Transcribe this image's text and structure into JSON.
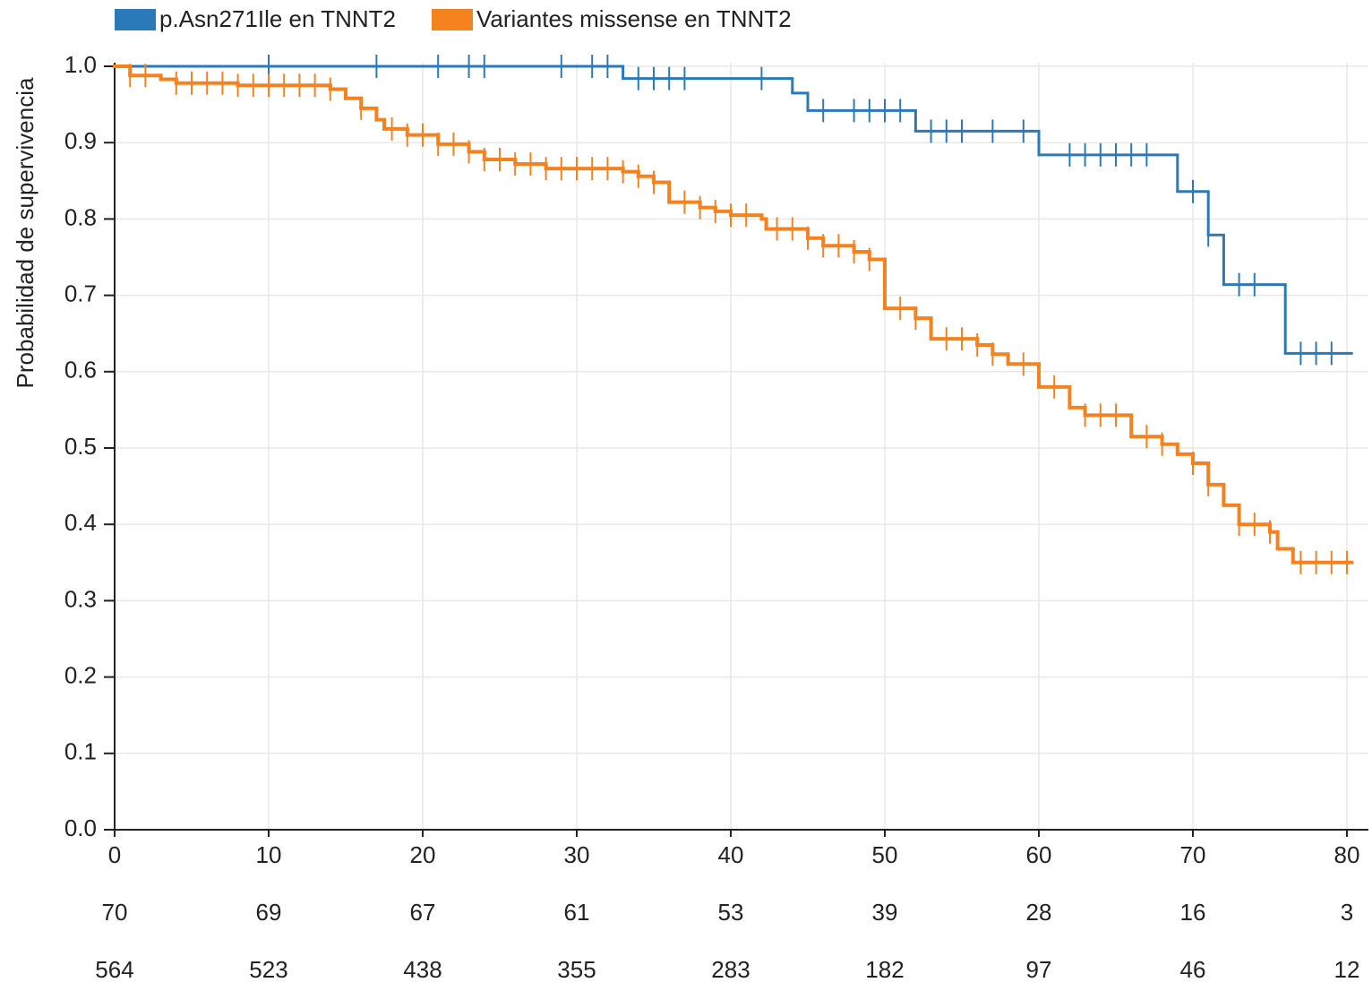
{
  "chart_data": {
    "type": "step",
    "ylabel": "Probabilidad de supervivencia",
    "xlim": [
      0,
      80.3
    ],
    "ylim": [
      0,
      1
    ],
    "xticks": [
      0,
      10,
      20,
      30,
      40,
      50,
      60,
      70,
      80
    ],
    "yticks": [
      {
        "value": 0,
        "label": "0.0"
      },
      0.1,
      0.2,
      0.3,
      0.4,
      0.5,
      0.6,
      0.7,
      0.8,
      0.9,
      {
        "value": 1,
        "label": "1.0"
      }
    ],
    "grid": true,
    "legend": "top",
    "series": [
      {
        "name": "p.Asn271Ile en TNNT2",
        "color": "#2a7ab9",
        "x": [
          0,
          33,
          44,
          45,
          52,
          60,
          69,
          71,
          72,
          76,
          80.3
        ],
        "values": [
          1.0,
          0.984,
          0.965,
          0.942,
          0.915,
          0.884,
          0.836,
          0.779,
          0.714,
          0.624,
          0.624
        ],
        "censored": [
          10,
          17,
          21,
          23,
          24,
          29,
          31,
          32,
          34,
          35,
          36,
          37,
          42,
          46,
          48,
          49,
          50,
          51,
          53,
          54,
          55,
          57,
          59,
          62,
          63,
          64,
          65,
          66,
          67,
          70,
          71,
          73,
          74,
          77,
          78,
          79
        ],
        "at_risk": [
          70,
          69,
          67,
          61,
          53,
          39,
          28,
          16,
          3
        ]
      },
      {
        "name": "Variantes missense en TNNT2",
        "color": "#f5821f",
        "x": [
          0,
          1,
          3,
          4,
          8,
          14,
          15,
          16,
          17,
          17.5,
          19,
          21,
          23,
          24,
          26,
          28,
          33,
          34,
          35,
          36,
          38,
          39,
          40,
          42,
          42.3,
          45,
          46,
          48,
          49,
          50,
          52,
          53,
          56,
          57,
          58,
          60,
          62,
          63,
          66,
          68,
          69,
          70,
          71,
          72,
          73,
          75,
          75.5,
          76.5,
          80.3
        ],
        "values": [
          1.0,
          0.988,
          0.983,
          0.978,
          0.975,
          0.97,
          0.958,
          0.945,
          0.93,
          0.918,
          0.91,
          0.898,
          0.888,
          0.878,
          0.872,
          0.866,
          0.862,
          0.856,
          0.848,
          0.822,
          0.815,
          0.81,
          0.805,
          0.8,
          0.787,
          0.775,
          0.765,
          0.757,
          0.747,
          0.683,
          0.67,
          0.643,
          0.635,
          0.623,
          0.61,
          0.58,
          0.553,
          0.543,
          0.515,
          0.505,
          0.492,
          0.48,
          0.452,
          0.425,
          0.4,
          0.39,
          0.368,
          0.35,
          0.35
        ],
        "censored": [
          1,
          2,
          4,
          5,
          6,
          7,
          8,
          9,
          10,
          11,
          12,
          13,
          14,
          16,
          18,
          19,
          20,
          21,
          22,
          23,
          24,
          25,
          26,
          27,
          28,
          29,
          30,
          31,
          32,
          33,
          34,
          35,
          37,
          38,
          39,
          40,
          41,
          43,
          44,
          45,
          46,
          47,
          48,
          49,
          51,
          52,
          54,
          55,
          56,
          57,
          59,
          61,
          63,
          64,
          65,
          67,
          68,
          70,
          71,
          73,
          74,
          75,
          77,
          78,
          79,
          80
        ],
        "at_risk": [
          564,
          523,
          438,
          355,
          283,
          182,
          97,
          46,
          12
        ]
      }
    ]
  }
}
